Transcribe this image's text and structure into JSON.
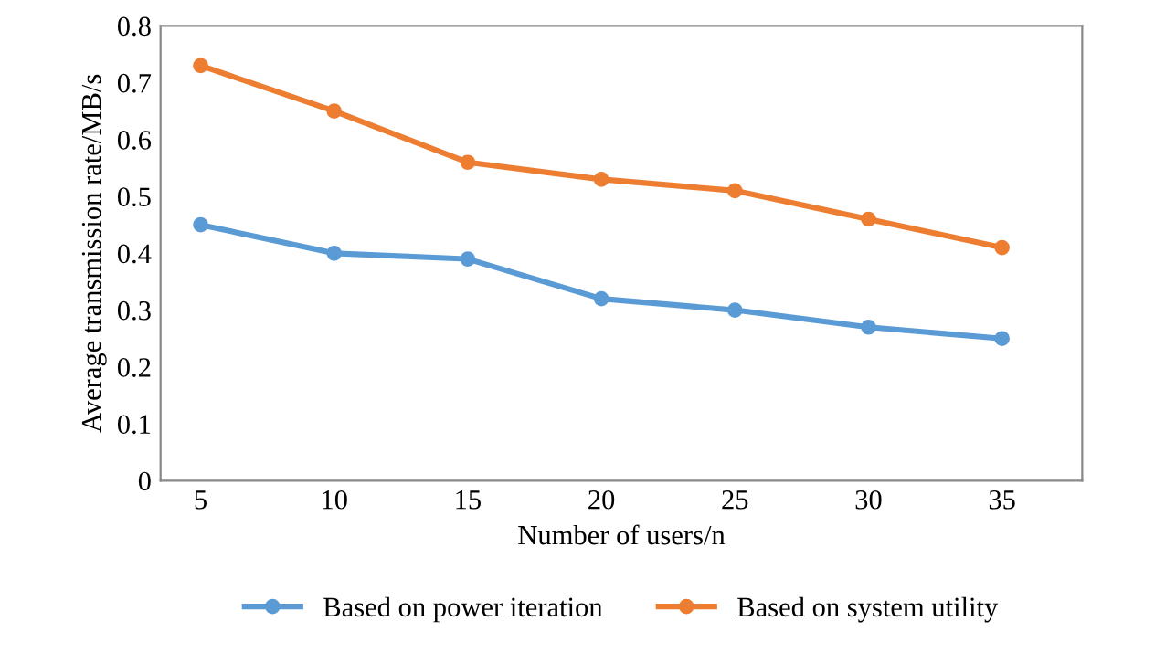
{
  "chart_data": {
    "type": "line",
    "xlabel": "Number of users/n",
    "ylabel": "Average transmission rate/MB/s",
    "x": [
      5,
      10,
      15,
      20,
      25,
      30,
      35
    ],
    "series": [
      {
        "name": "Based on power iteration",
        "color": "#5b9bd5",
        "values": [
          0.45,
          0.4,
          0.39,
          0.32,
          0.3,
          0.27,
          0.25
        ]
      },
      {
        "name": "Based on system utility",
        "color": "#ed7d31",
        "values": [
          0.73,
          0.65,
          0.56,
          0.53,
          0.51,
          0.46,
          0.41
        ]
      }
    ],
    "xlim": [
      3.5,
      38
    ],
    "xticks": [
      5,
      10,
      15,
      20,
      25,
      30,
      35
    ],
    "ylim": [
      0,
      0.8
    ],
    "yticks": [
      0,
      0.1,
      0.2,
      0.3,
      0.4,
      0.5,
      0.6,
      0.7,
      0.8
    ],
    "grid": false,
    "legend": "bottom",
    "marker": "circle",
    "line_style": "solid"
  }
}
